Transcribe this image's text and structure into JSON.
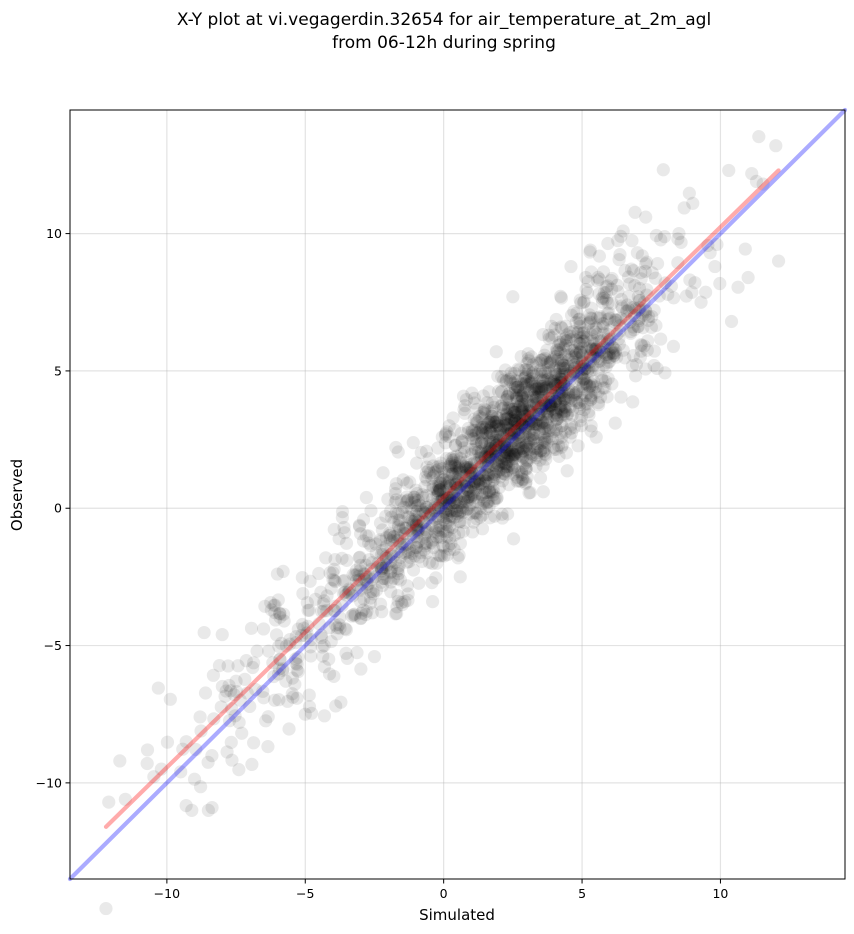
{
  "chart_data": {
    "type": "scatter",
    "title": "X-Y plot at vi.vegagerdin.32654 for air_temperature_at_2m_agl",
    "subtitle": "from 06-12h during spring",
    "xlabel": "Simulated",
    "ylabel": "Observed",
    "xlim": [
      -13.5,
      14.5
    ],
    "ylim": [
      -13.5,
      14.5
    ],
    "x_ticks": [
      -10,
      -5,
      0,
      5,
      10
    ],
    "y_ticks": [
      -10,
      -5,
      0,
      5,
      10
    ],
    "x_tick_labels": [
      "−10",
      "−5",
      "0",
      "5",
      "10"
    ],
    "y_tick_labels": [
      "−10",
      "−5",
      "0",
      "5",
      "10"
    ],
    "grid": true,
    "point_color": "#000000",
    "points": {
      "approximate_count": 2000,
      "x_range": [
        -12.2,
        12.1
      ],
      "y_range": [
        -11.0,
        13.3
      ],
      "sample": [
        [
          -12.1,
          -10.7
        ],
        [
          -11.7,
          -9.2
        ],
        [
          -11.5,
          -10.6
        ],
        [
          -10.7,
          -8.8
        ],
        [
          -10.2,
          -9.5
        ],
        [
          -9.5,
          -9.6
        ],
        [
          -9.3,
          -8.5
        ],
        [
          -9.1,
          -11.0
        ],
        [
          -8.8,
          -7.6
        ],
        [
          -8.5,
          -11.0
        ],
        [
          -8.0,
          -4.6
        ],
        [
          -7.5,
          -6.3
        ],
        [
          -6.9,
          -5.8
        ],
        [
          -6.5,
          -6.9
        ],
        [
          -6.1,
          -3.8
        ],
        [
          -5.8,
          -2.3
        ],
        [
          -5.3,
          -5.9
        ],
        [
          -5.0,
          -7.5
        ],
        [
          -4.5,
          -4.2
        ],
        [
          -4.0,
          -2.6
        ],
        [
          -3.9,
          -7.2
        ],
        [
          -3.6,
          -0.7
        ],
        [
          -3.0,
          -3.4
        ],
        [
          -2.8,
          -1.0
        ],
        [
          -2.5,
          -5.4
        ],
        [
          -2.0,
          -1.8
        ],
        [
          -1.5,
          -1.4
        ],
        [
          -1.4,
          -3.4
        ],
        [
          -1.0,
          -0.6
        ],
        [
          -0.6,
          1.5
        ],
        [
          -0.4,
          -3.4
        ],
        [
          0.0,
          0.3
        ],
        [
          0.2,
          3.0
        ],
        [
          0.6,
          -2.5
        ],
        [
          0.8,
          1.2
        ],
        [
          1.2,
          3.6
        ],
        [
          1.5,
          1.0
        ],
        [
          1.9,
          5.7
        ],
        [
          2.0,
          2.4
        ],
        [
          2.5,
          7.7
        ],
        [
          2.8,
          1.9
        ],
        [
          3.2,
          4.9
        ],
        [
          3.6,
          0.6
        ],
        [
          3.8,
          6.3
        ],
        [
          4.1,
          3.4
        ],
        [
          4.6,
          8.8
        ],
        [
          5.0,
          4.9
        ],
        [
          5.3,
          9.4
        ],
        [
          5.7,
          6.1
        ],
        [
          6.2,
          3.1
        ],
        [
          6.4,
          9.9
        ],
        [
          6.8,
          7.3
        ],
        [
          7.3,
          10.6
        ],
        [
          7.6,
          5.2
        ],
        [
          8.0,
          8.2
        ],
        [
          8.5,
          10.0
        ],
        [
          9.0,
          11.1
        ],
        [
          9.3,
          7.5
        ],
        [
          9.8,
          8.8
        ],
        [
          10.3,
          12.3
        ],
        [
          10.4,
          6.8
        ],
        [
          11.0,
          8.4
        ],
        [
          11.3,
          11.9
        ],
        [
          12.0,
          13.2
        ],
        [
          12.1,
          9.0
        ]
      ]
    },
    "lines": [
      {
        "kind": "1:1 reference",
        "color": "#0000ff",
        "x": [
          -13.5,
          14.5
        ],
        "y": [
          -13.5,
          14.5
        ]
      },
      {
        "kind": "fit",
        "color": "#ff0000",
        "x": [
          -12.2,
          12.1
        ],
        "y": [
          -11.6,
          12.3
        ]
      }
    ]
  }
}
